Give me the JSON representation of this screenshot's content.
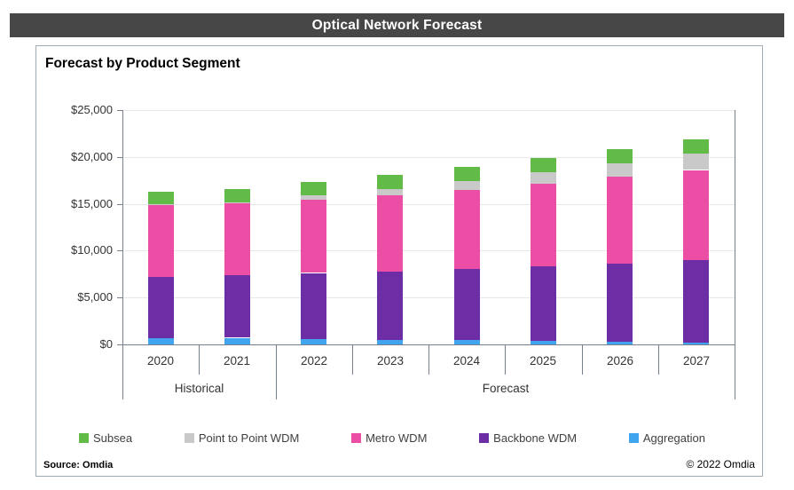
{
  "window_title": "Optical Network Forecast",
  "card": {
    "title": "Forecast by Product Segment",
    "source": "Source: Omdia",
    "copyright": "© 2022 Omdia"
  },
  "colors": {
    "title_bar_bg": "#474747",
    "title_bar_text": "#ffffff",
    "card_border": "#a3abb5",
    "axis_line": "#76808e",
    "gridline": "#e8e8e8",
    "text": "#333333",
    "subsea_green": "#62bb46",
    "p2p_gray": "#c9c9c9",
    "metro_pink": "#ec4da5",
    "backbone_purple": "#6c2da5",
    "aggregation_blue": "#41a4ee"
  },
  "chart_data": {
    "type": "bar",
    "stacked": true,
    "title": "Forecast by Product Segment",
    "xlabel": "",
    "ylabel": "",
    "ylim": [
      0,
      25000
    ],
    "ytick_values": [
      0,
      5000,
      10000,
      15000,
      20000,
      25000
    ],
    "ytick_labels": [
      "$0",
      "$5,000",
      "$10,000",
      "$15,000",
      "$20,000",
      "$25,000"
    ],
    "grid": true,
    "legend_position": "bottom",
    "categories": [
      "2020",
      "2021",
      "2022",
      "2023",
      "2024",
      "2025",
      "2026",
      "2027"
    ],
    "axis_groups": [
      {
        "label": "Historical",
        "span": 2
      },
      {
        "label": "Forecast",
        "span": 6
      }
    ],
    "series": [
      {
        "name": "Aggregation",
        "color": "#41a4ee",
        "values": [
          700,
          700,
          600,
          550,
          450,
          350,
          300,
          200
        ]
      },
      {
        "name": "Backbone WDM",
        "color": "#6c2da5",
        "values": [
          6500,
          6650,
          7000,
          7250,
          7600,
          8000,
          8300,
          8800
        ]
      },
      {
        "name": "Metro WDM",
        "color": "#ec4da5",
        "values": [
          7700,
          7700,
          7900,
          8100,
          8400,
          8800,
          9300,
          9600
        ]
      },
      {
        "name": "Point to Point WDM",
        "color": "#c9c9c9",
        "values": [
          100,
          150,
          450,
          700,
          950,
          1200,
          1400,
          1750
        ]
      },
      {
        "name": "Subsea",
        "color": "#62bb46",
        "values": [
          1300,
          1400,
          1400,
          1500,
          1500,
          1500,
          1500,
          1550
        ]
      }
    ],
    "totals": [
      16300,
      16600,
      17350,
      18100,
      18900,
      19850,
      20800,
      21900
    ]
  }
}
